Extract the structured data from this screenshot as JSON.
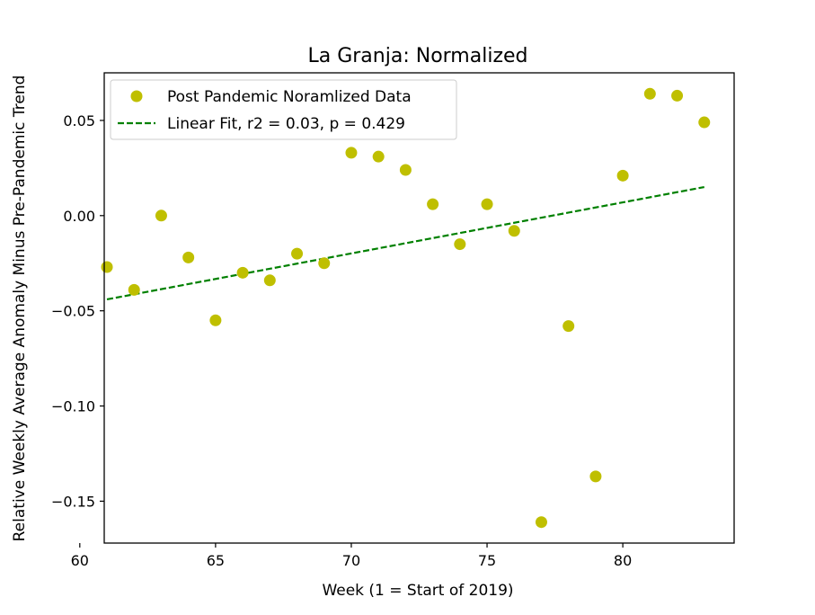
{
  "chart_data": {
    "type": "scatter",
    "title": "La Granja: Normalized",
    "xlabel": "Week (1 = Start of 2019)",
    "ylabel": "Relative Weekly Average Anomaly Minus Pre-Pandemic Trend",
    "xlim": [
      60.9,
      84.1
    ],
    "ylim": [
      -0.172,
      0.075
    ],
    "x_ticks": [
      60,
      65,
      70,
      75,
      80
    ],
    "x_tick_labels": [
      "60",
      "65",
      "70",
      "75",
      "80"
    ],
    "y_ticks": [
      -0.15,
      -0.1,
      -0.05,
      0.0,
      0.05
    ],
    "y_tick_labels": [
      "−0.15",
      "−0.10",
      "−0.05",
      "0.00",
      "0.05"
    ],
    "grid": false,
    "legend_position": "top-left",
    "series": [
      {
        "name": "Post Pandemic Noramlized Data",
        "kind": "scatter",
        "color": "#bfbf00",
        "points": [
          {
            "x": 61,
            "y": -0.027
          },
          {
            "x": 62,
            "y": -0.039
          },
          {
            "x": 63,
            "y": 0.0
          },
          {
            "x": 64,
            "y": -0.022
          },
          {
            "x": 65,
            "y": -0.055
          },
          {
            "x": 66,
            "y": -0.03
          },
          {
            "x": 67,
            "y": -0.034
          },
          {
            "x": 68,
            "y": -0.02
          },
          {
            "x": 69,
            "y": -0.025
          },
          {
            "x": 70,
            "y": 0.033
          },
          {
            "x": 71,
            "y": 0.031
          },
          {
            "x": 72,
            "y": 0.024
          },
          {
            "x": 73,
            "y": 0.006
          },
          {
            "x": 74,
            "y": -0.015
          },
          {
            "x": 75,
            "y": 0.006
          },
          {
            "x": 76,
            "y": -0.008
          },
          {
            "x": 77,
            "y": -0.161
          },
          {
            "x": 78,
            "y": -0.058
          },
          {
            "x": 79,
            "y": -0.137
          },
          {
            "x": 80,
            "y": 0.021
          },
          {
            "x": 81,
            "y": 0.064
          },
          {
            "x": 82,
            "y": 0.063
          },
          {
            "x": 83,
            "y": 0.049
          }
        ]
      },
      {
        "name": "Linear Fit, r2 = 0.03, p = 0.429",
        "kind": "line",
        "style": "dashed",
        "color": "#008000",
        "points": [
          {
            "x": 61,
            "y": -0.044
          },
          {
            "x": 83,
            "y": 0.015
          }
        ]
      }
    ]
  }
}
